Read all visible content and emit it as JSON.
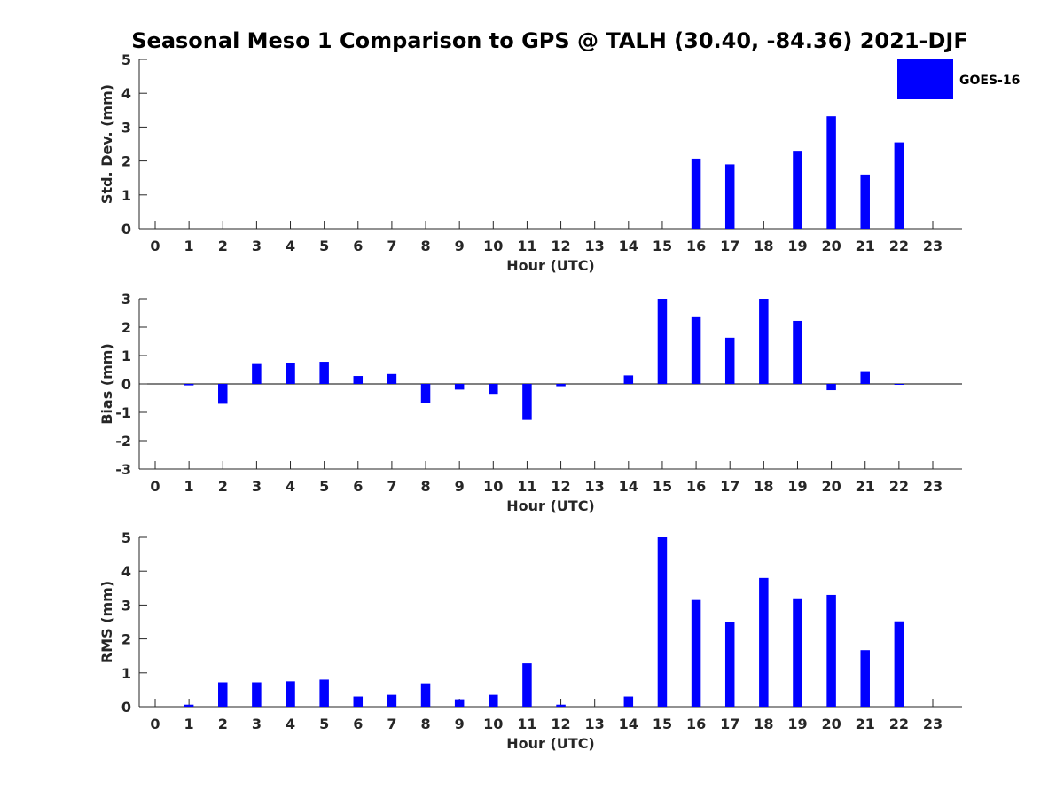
{
  "colors": {
    "bar": "#0000ff",
    "axis": "#262626"
  },
  "chart_data": [
    {
      "type": "bar",
      "title": "Seasonal Meso 1 Comparison to GPS @ TALH (30.40, -84.36) 2021-DJF",
      "xlabel": "Hour (UTC)",
      "ylabel": "Std. Dev. (mm)",
      "ylim": [
        0,
        5
      ],
      "yticks": [
        "0",
        "1",
        "2",
        "3",
        "4",
        "5"
      ],
      "categories": [
        "0",
        "1",
        "2",
        "3",
        "4",
        "5",
        "6",
        "7",
        "8",
        "9",
        "10",
        "11",
        "12",
        "13",
        "14",
        "15",
        "16",
        "17",
        "18",
        "19",
        "20",
        "21",
        "22",
        "23"
      ],
      "legend": {
        "label": "GOES-16",
        "position": "top-right"
      },
      "series": [
        {
          "name": "GOES-16",
          "values": [
            null,
            null,
            null,
            null,
            null,
            null,
            null,
            null,
            null,
            null,
            null,
            null,
            null,
            null,
            null,
            null,
            2.07,
            1.9,
            null,
            2.3,
            3.32,
            1.6,
            2.55,
            null
          ]
        }
      ]
    },
    {
      "type": "bar",
      "xlabel": "Hour (UTC)",
      "ylabel": "Bias (mm)",
      "ylim": [
        -3,
        3
      ],
      "yticks": [
        "-3",
        "-2",
        "-1",
        "0",
        "1",
        "2",
        "3"
      ],
      "categories": [
        "0",
        "1",
        "2",
        "3",
        "4",
        "5",
        "6",
        "7",
        "8",
        "9",
        "10",
        "11",
        "12",
        "13",
        "14",
        "15",
        "16",
        "17",
        "18",
        "19",
        "20",
        "21",
        "22",
        "23"
      ],
      "series": [
        {
          "name": "GOES-16",
          "values": [
            0,
            -0.05,
            -0.7,
            0.73,
            0.75,
            0.78,
            0.28,
            0.35,
            -0.68,
            -0.2,
            -0.35,
            -1.27,
            -0.08,
            0,
            0.3,
            3.0,
            2.38,
            1.63,
            3.0,
            2.22,
            -0.22,
            0.45,
            -0.02,
            0
          ]
        }
      ]
    },
    {
      "type": "bar",
      "xlabel": "Hour (UTC)",
      "ylabel": "RMS (mm)",
      "ylim": [
        0,
        5
      ],
      "yticks": [
        "0",
        "1",
        "2",
        "3",
        "4",
        "5"
      ],
      "categories": [
        "0",
        "1",
        "2",
        "3",
        "4",
        "5",
        "6",
        "7",
        "8",
        "9",
        "10",
        "11",
        "12",
        "13",
        "14",
        "15",
        "16",
        "17",
        "18",
        "19",
        "20",
        "21",
        "22",
        "23"
      ],
      "series": [
        {
          "name": "GOES-16",
          "values": [
            0,
            0.06,
            0.72,
            0.72,
            0.75,
            0.8,
            0.3,
            0.35,
            0.69,
            0.22,
            0.35,
            1.28,
            0.06,
            0,
            0.3,
            5.0,
            3.15,
            2.5,
            3.8,
            3.2,
            3.3,
            1.67,
            2.52,
            0
          ]
        }
      ]
    }
  ]
}
